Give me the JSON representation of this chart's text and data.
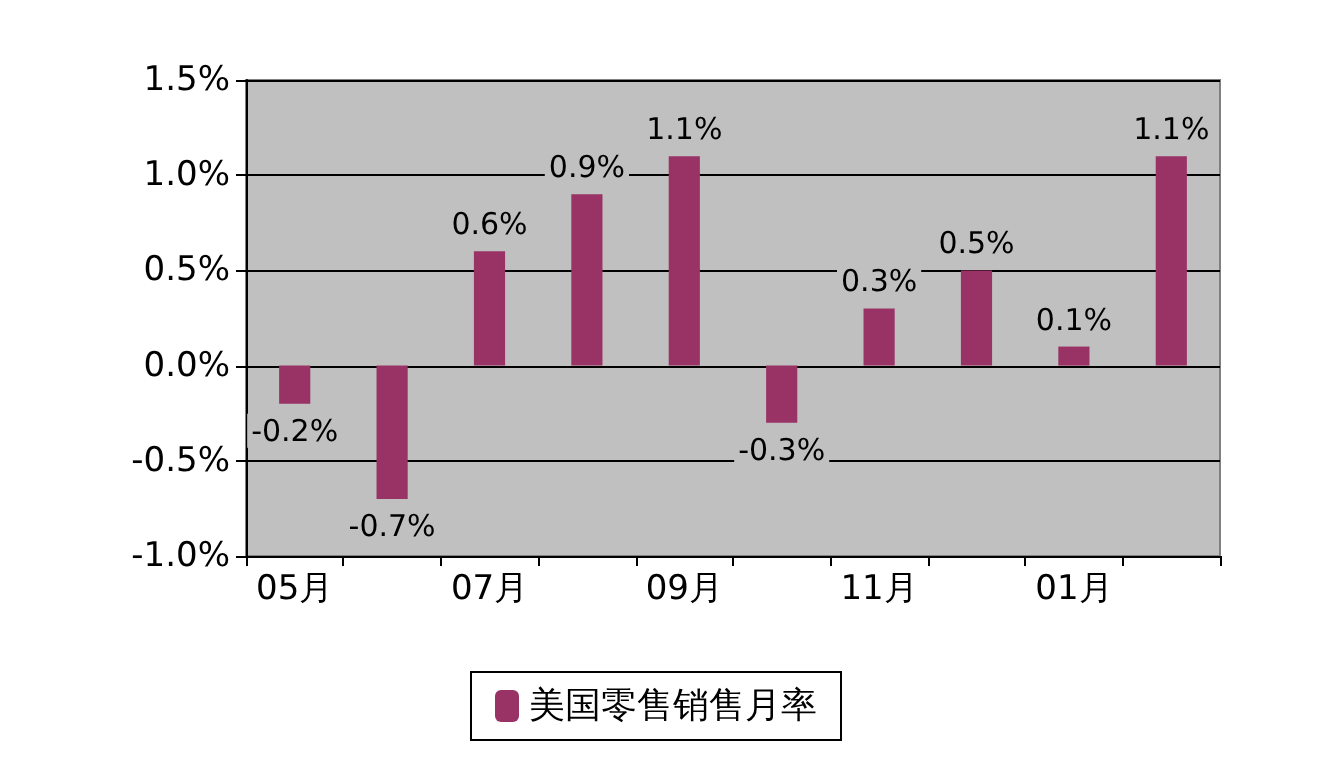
{
  "chart_data": {
    "type": "bar",
    "categories": [
      "05月",
      null,
      "07月",
      null,
      "09月",
      null,
      "11月",
      null,
      "01月",
      null
    ],
    "series": [
      {
        "name": "美国零售销售月率",
        "color": "#993366",
        "values": [
          -0.2,
          -0.7,
          0.6,
          0.9,
          1.1,
          -0.3,
          0.3,
          0.5,
          0.1,
          1.1
        ],
        "value_labels": [
          "-0.2%",
          "-0.7%",
          "0.6%",
          "0.9%",
          "1.1%",
          "-0.3%",
          "0.3%",
          "0.5%",
          "0.1%",
          "1.1%"
        ]
      }
    ],
    "ylim": [
      -1.0,
      1.5
    ],
    "yticks": [
      {
        "value": -1.0,
        "label": "-1.0%"
      },
      {
        "value": -0.5,
        "label": "-0.5%"
      },
      {
        "value": 0,
        "label": "0.0%"
      },
      {
        "value": 0.5,
        "label": "0.5%"
      },
      {
        "value": 1.0,
        "label": "1.0%"
      },
      {
        "value": 1.5,
        "label": "1.5%"
      }
    ],
    "grid": "y",
    "legend": "bottom"
  }
}
